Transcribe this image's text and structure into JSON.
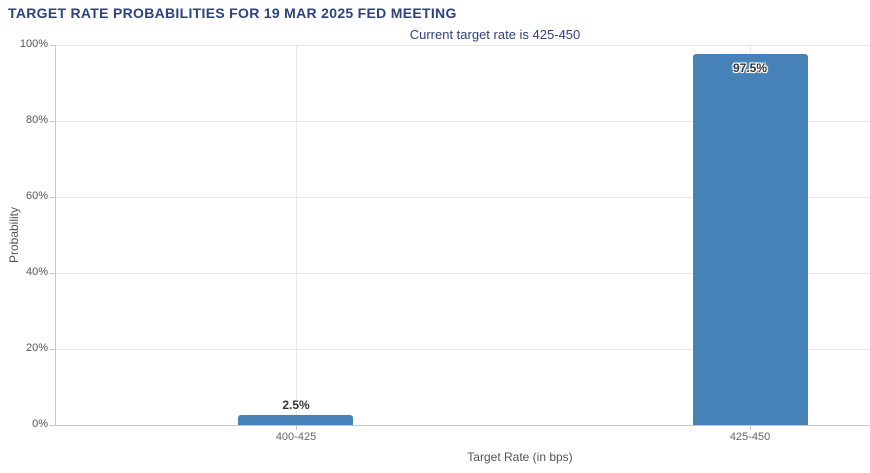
{
  "chart_data": {
    "type": "bar",
    "title": "TARGET RATE PROBABILITIES FOR 19 MAR 2025 FED MEETING",
    "subtitle": "Current target rate is 425-450",
    "categories": [
      "400-425",
      "425-450"
    ],
    "values": [
      2.5,
      97.5
    ],
    "value_labels": [
      "2.5%",
      "97.5%"
    ],
    "xlabel": "Target Rate (in bps)",
    "ylabel": "Probability",
    "ylim": [
      0,
      100
    ],
    "y_ticks": [
      0,
      20,
      40,
      60,
      80,
      100
    ],
    "y_tick_labels": [
      "0%",
      "20%",
      "40%",
      "60%",
      "80%",
      "100%"
    ],
    "grid": true,
    "legend": "none",
    "colors": {
      "bar": "#4681b7",
      "title": "#2e4180",
      "subtitle": "#2e4180",
      "grid_line": "#e6e6e6",
      "axis_line": "#c9c9c9",
      "y_tick_label": "#555555",
      "x_tick_label": "#666666",
      "axis_title": "#555555",
      "data_label": "#333333",
      "background": "#ffffff"
    }
  }
}
